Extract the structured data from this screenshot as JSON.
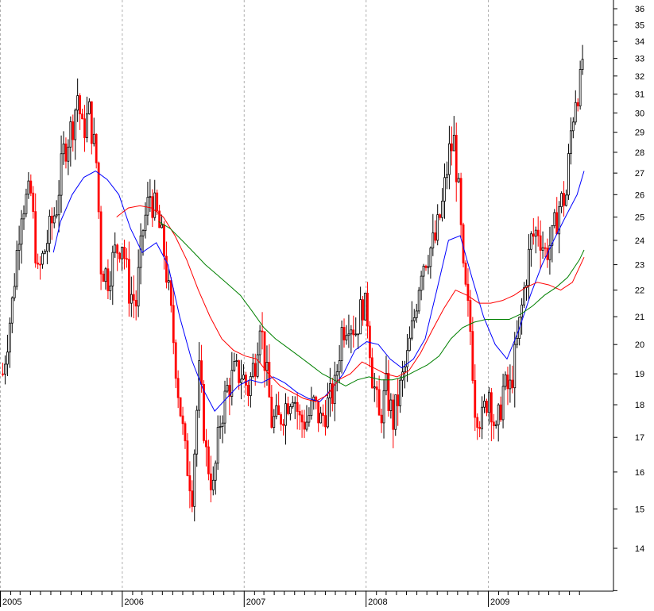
{
  "chart_data": {
    "type": "candlestick",
    "title": "",
    "xlabel": "",
    "ylabel": "",
    "ylim": [
      13,
      36
    ],
    "y_scale": "log",
    "y_ticks": [
      "14",
      "15",
      "16",
      "17",
      "18",
      "19",
      "20",
      "21",
      "22",
      "23",
      "24",
      "25",
      "26",
      "27",
      "28",
      "29",
      "30",
      "31",
      "32",
      "33",
      "34",
      "35",
      "36"
    ],
    "x_labels": [
      "2005",
      "2006",
      "2007",
      "2008",
      "2009"
    ],
    "x_range": [
      "2005-01-01",
      "2009-10-31"
    ],
    "grid": {
      "vertical_year_lines": true,
      "horizontal": false
    },
    "colors": {
      "up_candle": "#000000",
      "down_candle": "#ff0000",
      "ma_short": "#0000ff",
      "ma_medium": "#ff0000",
      "ma_long": "#008000",
      "grid": "#b0b0b0"
    },
    "price_path": [
      [
        "2005-01-07",
        19.0
      ],
      [
        "2005-02-04",
        21.5
      ],
      [
        "2005-03-04",
        25.5
      ],
      [
        "2005-04-01",
        26.0
      ],
      [
        "2005-04-22",
        22.5
      ],
      [
        "2005-05-20",
        24.0
      ],
      [
        "2005-06-17",
        25.5
      ],
      [
        "2005-07-08",
        28.0
      ],
      [
        "2005-08-05",
        29.5
      ],
      [
        "2005-08-19",
        31.0
      ],
      [
        "2005-09-02",
        29.0
      ],
      [
        "2005-09-23",
        30.0
      ],
      [
        "2005-10-14",
        27.5
      ],
      [
        "2005-10-28",
        23.0
      ],
      [
        "2005-11-18",
        22.5
      ],
      [
        "2005-12-09",
        23.5
      ],
      [
        "2005-12-30",
        24.0
      ],
      [
        "2006-01-20",
        22.0
      ],
      [
        "2006-02-10",
        21.5
      ],
      [
        "2006-03-03",
        24.5
      ],
      [
        "2006-03-24",
        26.0
      ],
      [
        "2006-04-14",
        25.0
      ],
      [
        "2006-05-05",
        23.5
      ],
      [
        "2006-05-26",
        21.0
      ],
      [
        "2006-06-16",
        18.5
      ],
      [
        "2006-07-07",
        16.5
      ],
      [
        "2006-07-28",
        15.5
      ],
      [
        "2006-08-18",
        19.0
      ],
      [
        "2006-09-08",
        16.5
      ],
      [
        "2006-09-29",
        15.5
      ],
      [
        "2006-10-20",
        17.5
      ],
      [
        "2006-11-10",
        18.5
      ],
      [
        "2006-12-01",
        19.0
      ],
      [
        "2006-12-22",
        19.0
      ],
      [
        "2007-01-12",
        18.5
      ],
      [
        "2007-02-02",
        19.5
      ],
      [
        "2007-02-16",
        21.0
      ],
      [
        "2007-03-02",
        19.5
      ],
      [
        "2007-03-23",
        17.5
      ],
      [
        "2007-04-13",
        17.5
      ],
      [
        "2007-05-04",
        18.0
      ],
      [
        "2007-05-25",
        18.5
      ],
      [
        "2007-06-15",
        17.5
      ],
      [
        "2007-07-06",
        17.5
      ],
      [
        "2007-07-27",
        18.0
      ],
      [
        "2007-08-17",
        17.5
      ],
      [
        "2007-09-07",
        18.0
      ],
      [
        "2007-09-28",
        18.5
      ],
      [
        "2007-10-19",
        20.5
      ],
      [
        "2007-11-09",
        21.0
      ],
      [
        "2007-11-30",
        20.5
      ],
      [
        "2007-12-21",
        21.5
      ],
      [
        "2008-01-04",
        21.0
      ],
      [
        "2008-01-18",
        19.0
      ],
      [
        "2008-02-08",
        17.5
      ],
      [
        "2008-02-29",
        18.5
      ],
      [
        "2008-03-21",
        17.5
      ],
      [
        "2008-04-11",
        18.5
      ],
      [
        "2008-05-02",
        19.5
      ],
      [
        "2008-05-23",
        21.0
      ],
      [
        "2008-06-13",
        23.0
      ],
      [
        "2008-07-04",
        23.5
      ],
      [
        "2008-07-25",
        24.0
      ],
      [
        "2008-08-15",
        25.5
      ],
      [
        "2008-09-05",
        28.0
      ],
      [
        "2008-09-19",
        28.5
      ],
      [
        "2008-10-03",
        26.0
      ],
      [
        "2008-10-17",
        22.5
      ],
      [
        "2008-11-07",
        20.5
      ],
      [
        "2008-11-21",
        18.0
      ],
      [
        "2008-12-12",
        17.5
      ],
      [
        "2009-01-02",
        18.5
      ],
      [
        "2009-01-23",
        17.0
      ],
      [
        "2009-02-13",
        18.5
      ],
      [
        "2009-03-06",
        18.5
      ],
      [
        "2009-03-27",
        20.0
      ],
      [
        "2009-04-17",
        22.0
      ],
      [
        "2009-05-08",
        24.0
      ],
      [
        "2009-05-29",
        24.5
      ],
      [
        "2009-06-19",
        23.5
      ],
      [
        "2009-07-10",
        24.0
      ],
      [
        "2009-07-31",
        25.5
      ],
      [
        "2009-08-21",
        26.0
      ],
      [
        "2009-09-04",
        29.0
      ],
      [
        "2009-09-18",
        31.0
      ],
      [
        "2009-10-02",
        31.5
      ],
      [
        "2009-10-09",
        33.0
      ]
    ],
    "moving_averages": [
      {
        "color": "#0000ff",
        "points": [
          [
            "2005-06-10",
            23.5
          ],
          [
            "2005-07-01",
            24.8
          ],
          [
            "2005-08-05",
            26.0
          ],
          [
            "2005-09-09",
            26.8
          ],
          [
            "2005-10-14",
            27.1
          ],
          [
            "2005-11-18",
            26.7
          ],
          [
            "2005-12-23",
            26.0
          ],
          [
            "2006-01-27",
            24.5
          ],
          [
            "2006-03-03",
            23.5
          ],
          [
            "2006-04-14",
            23.9
          ],
          [
            "2006-05-19",
            23.0
          ],
          [
            "2006-06-23",
            21.0
          ],
          [
            "2006-07-28",
            19.5
          ],
          [
            "2006-09-01",
            18.5
          ],
          [
            "2006-10-06",
            17.8
          ],
          [
            "2006-11-10",
            18.2
          ],
          [
            "2006-12-15",
            18.6
          ],
          [
            "2007-01-19",
            18.8
          ],
          [
            "2007-02-23",
            18.7
          ],
          [
            "2007-03-30",
            18.9
          ],
          [
            "2007-05-04",
            18.7
          ],
          [
            "2007-06-08",
            18.4
          ],
          [
            "2007-07-13",
            18.2
          ],
          [
            "2007-08-17",
            18.1
          ],
          [
            "2007-09-21",
            18.5
          ],
          [
            "2007-10-26",
            19.0
          ],
          [
            "2007-11-30",
            19.8
          ],
          [
            "2008-01-04",
            20.1
          ],
          [
            "2008-02-08",
            20.0
          ],
          [
            "2008-03-14",
            19.5
          ],
          [
            "2008-04-18",
            19.2
          ],
          [
            "2008-05-23",
            19.5
          ],
          [
            "2008-06-27",
            20.2
          ],
          [
            "2008-08-01",
            22.0
          ],
          [
            "2008-09-05",
            24.0
          ],
          [
            "2008-10-10",
            24.2
          ],
          [
            "2008-11-14",
            22.5
          ],
          [
            "2008-12-19",
            21.0
          ],
          [
            "2009-01-23",
            20.0
          ],
          [
            "2009-02-27",
            19.5
          ],
          [
            "2009-04-03",
            20.5
          ],
          [
            "2009-05-08",
            21.8
          ],
          [
            "2009-06-12",
            23.0
          ],
          [
            "2009-07-17",
            24.0
          ],
          [
            "2009-08-21",
            25.0
          ],
          [
            "2009-09-25",
            26.0
          ],
          [
            "2009-10-16",
            27.1
          ]
        ]
      },
      {
        "color": "#ff0000",
        "points": [
          [
            "2005-12-16",
            25.0
          ],
          [
            "2006-01-20",
            25.4
          ],
          [
            "2006-02-24",
            25.5
          ],
          [
            "2006-03-31",
            25.4
          ],
          [
            "2006-05-05",
            25.0
          ],
          [
            "2006-06-09",
            24.2
          ],
          [
            "2006-07-14",
            23.2
          ],
          [
            "2006-08-18",
            22.0
          ],
          [
            "2006-09-22",
            21.0
          ],
          [
            "2006-10-27",
            20.2
          ],
          [
            "2006-12-01",
            19.8
          ],
          [
            "2007-01-05",
            19.6
          ],
          [
            "2007-02-09",
            19.5
          ],
          [
            "2007-03-16",
            19.0
          ],
          [
            "2007-04-20",
            18.6
          ],
          [
            "2007-05-25",
            18.4
          ],
          [
            "2007-06-29",
            18.2
          ],
          [
            "2007-08-03",
            18.1
          ],
          [
            "2007-09-07",
            18.3
          ],
          [
            "2007-10-12",
            18.8
          ],
          [
            "2007-11-16",
            19.0
          ],
          [
            "2007-12-21",
            19.4
          ],
          [
            "2008-01-25",
            19.2
          ],
          [
            "2008-02-29",
            19.0
          ],
          [
            "2008-04-04",
            18.9
          ],
          [
            "2008-05-09",
            19.1
          ],
          [
            "2008-06-13",
            19.7
          ],
          [
            "2008-07-18",
            20.5
          ],
          [
            "2008-08-22",
            21.3
          ],
          [
            "2008-09-26",
            22.0
          ],
          [
            "2008-10-31",
            21.8
          ],
          [
            "2008-12-05",
            21.5
          ],
          [
            "2009-01-09",
            21.5
          ],
          [
            "2009-02-13",
            21.6
          ],
          [
            "2009-03-20",
            21.8
          ],
          [
            "2009-04-24",
            22.1
          ],
          [
            "2009-05-29",
            22.3
          ],
          [
            "2009-07-03",
            22.2
          ],
          [
            "2009-08-07",
            22.0
          ],
          [
            "2009-09-11",
            22.3
          ],
          [
            "2009-10-16",
            23.3
          ]
        ]
      },
      {
        "color": "#008000",
        "points": [
          [
            "2006-04-21",
            24.8
          ],
          [
            "2006-05-26",
            24.5
          ],
          [
            "2006-06-30",
            24.0
          ],
          [
            "2006-08-04",
            23.5
          ],
          [
            "2006-09-08",
            23.0
          ],
          [
            "2006-10-13",
            22.6
          ],
          [
            "2006-11-17",
            22.2
          ],
          [
            "2006-12-22",
            21.8
          ],
          [
            "2007-01-26",
            21.2
          ],
          [
            "2007-03-02",
            20.6
          ],
          [
            "2007-04-06",
            20.2
          ],
          [
            "2007-05-11",
            19.9
          ],
          [
            "2007-06-15",
            19.6
          ],
          [
            "2007-07-20",
            19.3
          ],
          [
            "2007-08-24",
            19.0
          ],
          [
            "2007-09-28",
            18.8
          ],
          [
            "2007-11-02",
            18.6
          ],
          [
            "2007-12-07",
            18.8
          ],
          [
            "2008-01-11",
            18.9
          ],
          [
            "2008-02-15",
            18.8
          ],
          [
            "2008-03-21",
            18.8
          ],
          [
            "2008-04-25",
            18.9
          ],
          [
            "2008-05-30",
            19.1
          ],
          [
            "2008-07-04",
            19.3
          ],
          [
            "2008-08-08",
            19.6
          ],
          [
            "2008-09-12",
            20.2
          ],
          [
            "2008-10-17",
            20.6
          ],
          [
            "2008-11-21",
            20.8
          ],
          [
            "2008-12-26",
            20.9
          ],
          [
            "2009-01-30",
            20.9
          ],
          [
            "2009-03-06",
            20.9
          ],
          [
            "2009-04-10",
            21.1
          ],
          [
            "2009-05-15",
            21.4
          ],
          [
            "2009-06-19",
            21.8
          ],
          [
            "2009-07-24",
            22.1
          ],
          [
            "2009-08-28",
            22.5
          ],
          [
            "2009-10-02",
            23.2
          ],
          [
            "2009-10-16",
            23.6
          ]
        ]
      }
    ]
  }
}
